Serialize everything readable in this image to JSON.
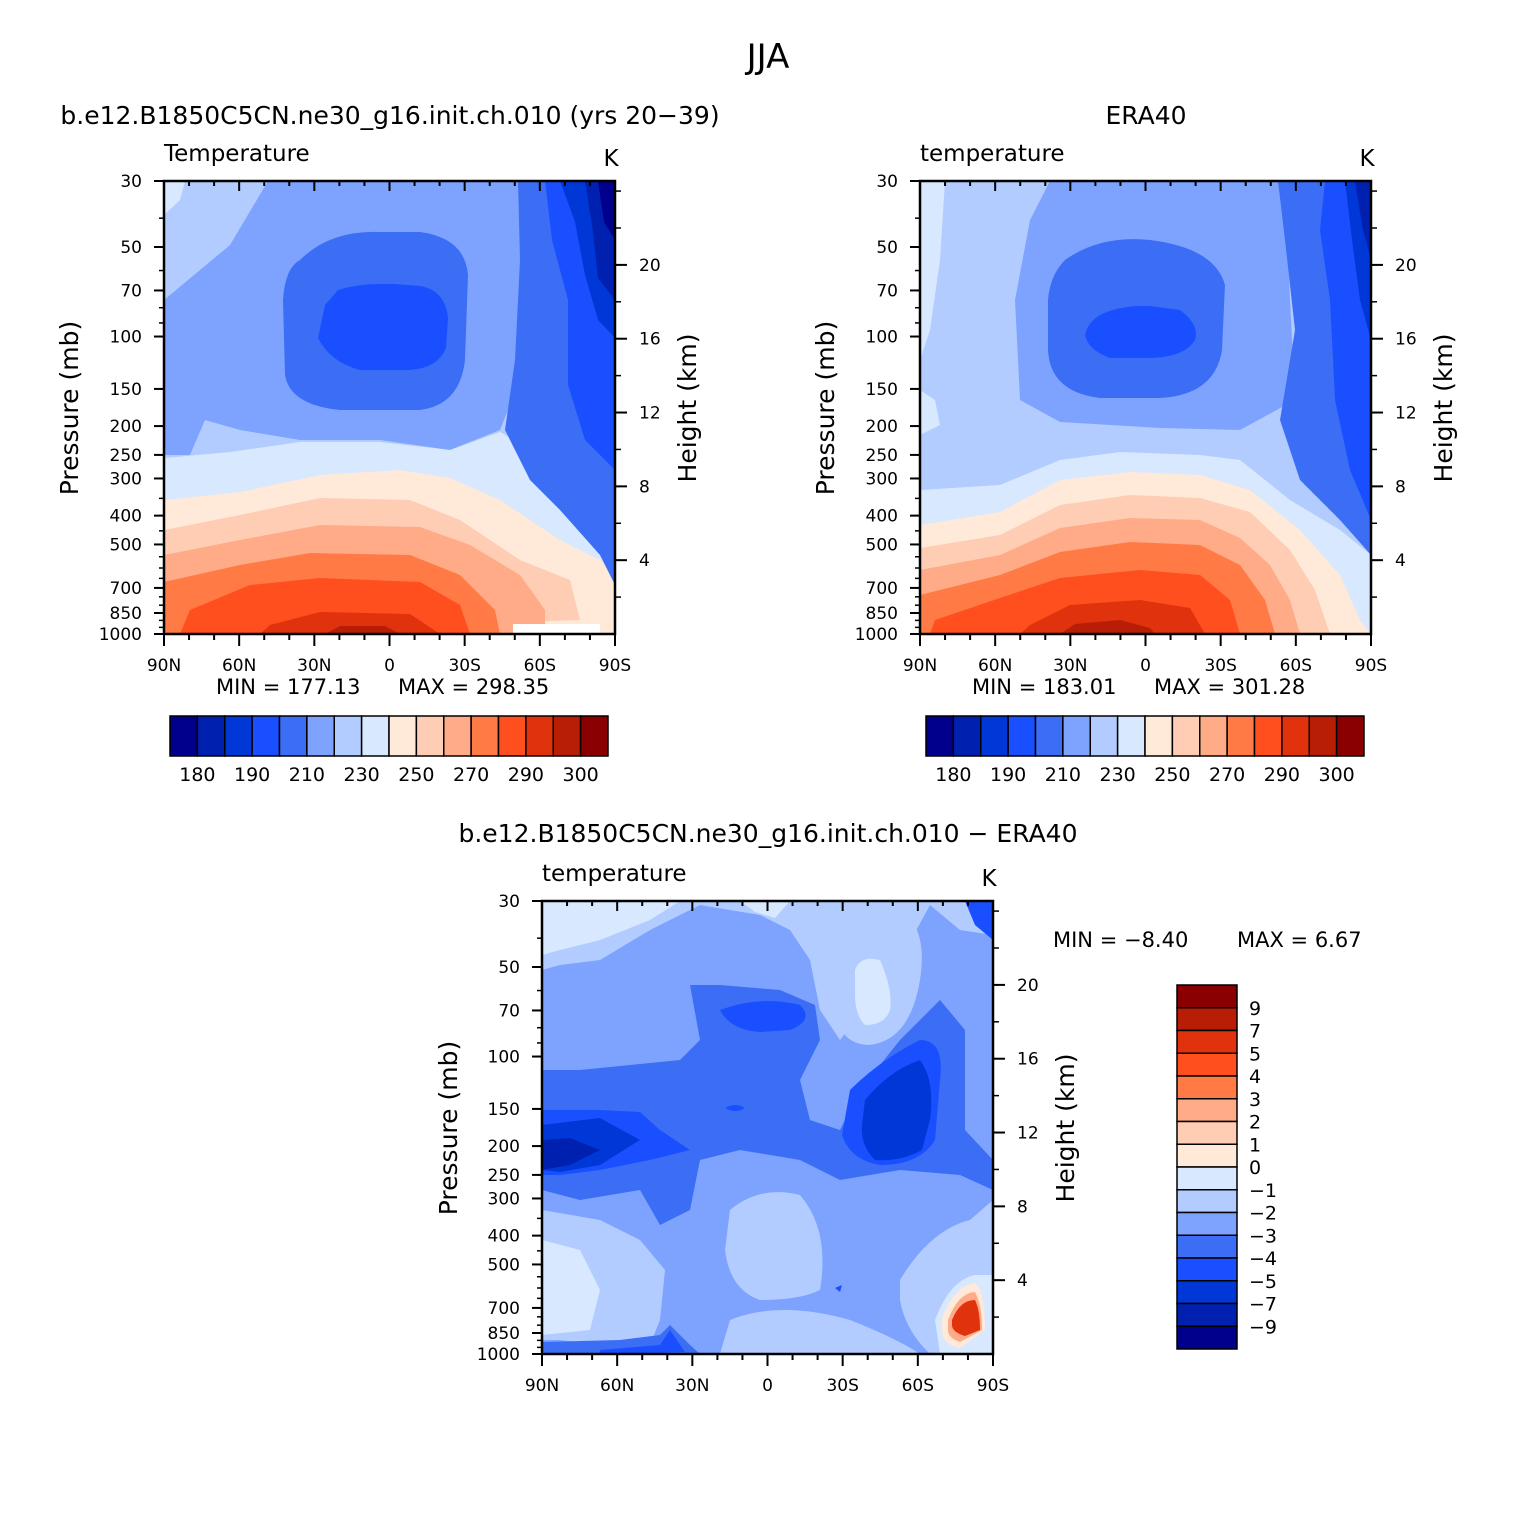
{
  "figure": {
    "title": "JJA",
    "diff_title": "b.e12.B1850C5CN.ne30_g16.init.ch.010 − ERA40"
  },
  "chart_data": [
    {
      "type": "heatmap",
      "title": "b.e12.B1850C5CN.ne30_g16.init.ch.010 (yrs 20−39)",
      "variable_label": "Temperature",
      "units": "K",
      "xlabel": "",
      "ylabel": "Pressure (mb)",
      "ylabel_right": "Height (km)",
      "x_ticks": [
        "90N",
        "60N",
        "30N",
        "0",
        "30S",
        "60S",
        "90S"
      ],
      "y_ticks": [
        30,
        50,
        70,
        100,
        150,
        200,
        250,
        300,
        400,
        500,
        700,
        850,
        1000
      ],
      "y_scale": "log",
      "height_ticks": [
        4,
        8,
        12,
        16,
        20
      ],
      "min_label": "MIN = 177.13",
      "max_label": "MAX = 298.35",
      "min": 177.13,
      "max": 298.35,
      "colorbar_labels": [
        "180",
        "190",
        "210",
        "230",
        "250",
        "270",
        "290",
        "300"
      ],
      "colorbar_levels": [
        180,
        185,
        190,
        200,
        210,
        220,
        230,
        240,
        250,
        260,
        270,
        280,
        290,
        295,
        300
      ]
    },
    {
      "type": "heatmap",
      "title": "ERA40",
      "variable_label": "temperature",
      "units": "K",
      "xlabel": "",
      "ylabel": "Pressure (mb)",
      "ylabel_right": "Height (km)",
      "x_ticks": [
        "90N",
        "60N",
        "30N",
        "0",
        "30S",
        "60S",
        "90S"
      ],
      "y_ticks": [
        30,
        50,
        70,
        100,
        150,
        200,
        250,
        300,
        400,
        500,
        700,
        850,
        1000
      ],
      "y_scale": "log",
      "height_ticks": [
        4,
        8,
        12,
        16,
        20
      ],
      "min_label": "MIN = 183.01",
      "max_label": "MAX = 301.28",
      "min": 183.01,
      "max": 301.28,
      "colorbar_labels": [
        "180",
        "190",
        "210",
        "230",
        "250",
        "270",
        "290",
        "300"
      ],
      "colorbar_levels": [
        180,
        185,
        190,
        200,
        210,
        220,
        230,
        240,
        250,
        260,
        270,
        280,
        290,
        295,
        300
      ]
    },
    {
      "type": "heatmap",
      "title": "b.e12.B1850C5CN.ne30_g16.init.ch.010 − ERA40",
      "variable_label": "temperature",
      "units": "K",
      "xlabel": "",
      "ylabel": "Pressure (mb)",
      "ylabel_right": "Height (km)",
      "x_ticks": [
        "90N",
        "60N",
        "30N",
        "0",
        "30S",
        "60S",
        "90S"
      ],
      "y_ticks": [
        30,
        50,
        70,
        100,
        150,
        200,
        250,
        300,
        400,
        500,
        700,
        850,
        1000
      ],
      "y_scale": "log",
      "height_ticks": [
        4,
        8,
        12,
        16,
        20
      ],
      "min_label": "MIN =   −8.40",
      "max_label": "MAX =    6.67",
      "min": -8.4,
      "max": 6.67,
      "colorbar_labels": [
        "9",
        "7",
        "5",
        "4",
        "3",
        "2",
        "1",
        "0",
        "−1",
        "−2",
        "−3",
        "−4",
        "−5",
        "−7",
        "−9"
      ],
      "colorbar_levels": [
        9,
        7,
        5,
        4,
        3,
        2,
        1,
        0,
        -1,
        -2,
        -3,
        -4,
        -5,
        -7,
        -9
      ]
    }
  ],
  "colors": {
    "abs_palette": [
      "#00008c",
      "#0020b0",
      "#0038d8",
      "#1a4fff",
      "#3c6ef5",
      "#7ea3ff",
      "#b3ccff",
      "#d8e8ff",
      "#ffe9d9",
      "#ffcdb4",
      "#ffab88",
      "#ff7a45",
      "#ff4f1f",
      "#e0320c",
      "#b81e05",
      "#8a0000"
    ],
    "diff_palette_top_to_bottom": [
      "#8a0000",
      "#b81e05",
      "#e0320c",
      "#ff4f1f",
      "#ff7a45",
      "#ffab88",
      "#ffcdb4",
      "#ffe9d9",
      "#d8e8ff",
      "#b3ccff",
      "#7ea3ff",
      "#3c6ef5",
      "#1a4fff",
      "#0038d8",
      "#0020b0",
      "#00008c"
    ]
  }
}
